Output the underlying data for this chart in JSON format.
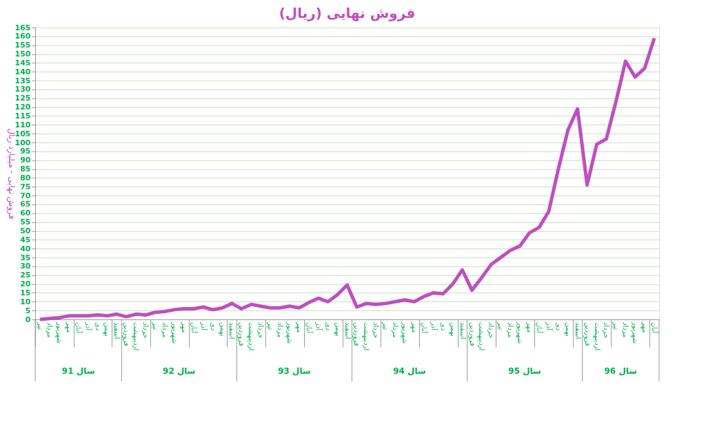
{
  "chart_data": {
    "type": "line",
    "title": "فروش نهایی (ریال)",
    "ylabel": "فروش نهایی - میلیارد ریال",
    "categories": [
      "تیر",
      "مرداد",
      "شهریور",
      "مهر",
      "آبان",
      "آذر",
      "دی",
      "بهمن",
      "اسفند",
      "فروردین",
      "اردیبهشت",
      "خرداد",
      "تیر",
      "مرداد",
      "شهریور",
      "مهر",
      "آبان",
      "آذر",
      "دی",
      "بهمن",
      "اسفند",
      "فروردین",
      "اردیبهشت",
      "خرداد",
      "تیر",
      "مرداد",
      "شهریور",
      "مهر",
      "آبان",
      "آذر",
      "دی",
      "بهمن",
      "اسفند",
      "فروردین",
      "اردیبهشت",
      "خرداد",
      "تیر",
      "مرداد",
      "شهریور",
      "مهر",
      "آبان",
      "آذر",
      "دی",
      "بهمن",
      "اسفند",
      "فروردین",
      "اردیبهشت",
      "خرداد",
      "تیر",
      "مرداد",
      "شهریور",
      "مهر",
      "آبان",
      "آذر",
      "دی",
      "بهمن",
      "اسفند",
      "فروردین",
      "اردیبهشت",
      "خرداد",
      "تیر",
      "مرداد",
      "شهریور",
      "مهر",
      "آبان"
    ],
    "series": [
      {
        "color": "#bf4fbf",
        "values": [
          0,
          0.5,
          1,
          2,
          2,
          2,
          2.5,
          2,
          3,
          1.5,
          3,
          2.5,
          4,
          4.5,
          5.5,
          6,
          6,
          7,
          5.5,
          6.5,
          9,
          6,
          8.5,
          7.5,
          6.5,
          6.5,
          7.5,
          6.5,
          9.5,
          12,
          10,
          14,
          19.5,
          7,
          9,
          8.5,
          9,
          10,
          11,
          10,
          13,
          15,
          14.5,
          20,
          28,
          16.5,
          23.5,
          31,
          35,
          39,
          41.5,
          49,
          52,
          61,
          85,
          107,
          119,
          76,
          99,
          102,
          123,
          146,
          137,
          142,
          159
        ]
      }
    ],
    "ylim": [
      0,
      165
    ],
    "yticks": [
      0,
      5,
      10,
      15,
      20,
      25,
      30,
      35,
      40,
      45,
      50,
      55,
      60,
      65,
      70,
      75,
      80,
      85,
      90,
      95,
      100,
      105,
      110,
      115,
      120,
      125,
      130,
      135,
      140,
      145,
      150,
      155,
      160,
      165
    ],
    "grid": "y",
    "marker": "none",
    "line_style": "solid",
    "annotations": [
      "سال 91",
      "سال 92",
      "سال 93",
      "سال 94",
      "سال 95",
      "سال 96"
    ]
  }
}
